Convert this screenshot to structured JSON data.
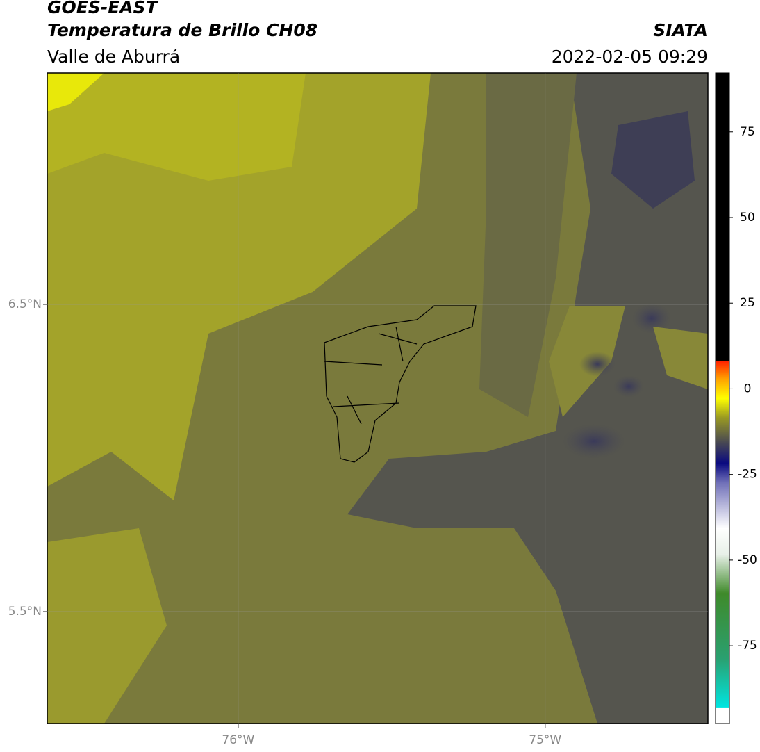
{
  "header": {
    "satellite": "GOES-EAST",
    "product": "Temperatura de Brillo CH08",
    "region": "Valle de Aburrá",
    "source": "SIATA",
    "datetime": "2022-02-05 09:29"
  },
  "map": {
    "lat_range": [
      5.136,
      7.253
    ],
    "lon_range": [
      -76.622,
      -74.47
    ],
    "lat_ticks": [
      {
        "value": 6.5,
        "label": "6.5°N"
      },
      {
        "value": 5.5,
        "label": "5.5°N"
      }
    ],
    "lon_ticks": [
      {
        "value": -76,
        "label": "76°W"
      },
      {
        "value": -75,
        "label": "75°W"
      }
    ]
  },
  "colorbar": {
    "lim": [
      -97.7,
      92.2
    ],
    "ticks": [
      75,
      50,
      25,
      0,
      -25,
      -50,
      -75
    ]
  }
}
